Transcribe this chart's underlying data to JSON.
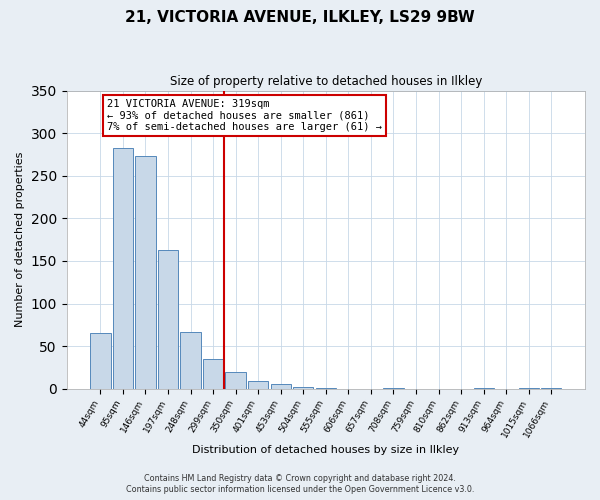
{
  "title": "21, VICTORIA AVENUE, ILKLEY, LS29 9BW",
  "subtitle": "Size of property relative to detached houses in Ilkley",
  "xlabel": "Distribution of detached houses by size in Ilkley",
  "ylabel": "Number of detached properties",
  "bin_labels": [
    "44sqm",
    "95sqm",
    "146sqm",
    "197sqm",
    "248sqm",
    "299sqm",
    "350sqm",
    "401sqm",
    "453sqm",
    "504sqm",
    "555sqm",
    "606sqm",
    "657sqm",
    "708sqm",
    "759sqm",
    "810sqm",
    "862sqm",
    "913sqm",
    "964sqm",
    "1015sqm",
    "1066sqm"
  ],
  "bar_values": [
    65,
    282,
    273,
    163,
    67,
    35,
    20,
    9,
    5,
    2,
    1,
    0,
    0,
    1,
    0,
    0,
    0,
    1,
    0,
    1,
    1
  ],
  "bar_color": "#c8d8e8",
  "bar_edgecolor": "#5588bb",
  "vline_x": 5.5,
  "vline_color": "#cc0000",
  "annotation_title": "21 VICTORIA AVENUE: 319sqm",
  "annotation_line1": "← 93% of detached houses are smaller (861)",
  "annotation_line2": "7% of semi-detached houses are larger (61) →",
  "annotation_box_color": "#cc0000",
  "ylim": [
    0,
    350
  ],
  "yticks": [
    0,
    50,
    100,
    150,
    200,
    250,
    300,
    350
  ],
  "footer_line1": "Contains HM Land Registry data © Crown copyright and database right 2024.",
  "footer_line2": "Contains public sector information licensed under the Open Government Licence v3.0.",
  "background_color": "#e8eef4",
  "plot_background": "#ffffff"
}
